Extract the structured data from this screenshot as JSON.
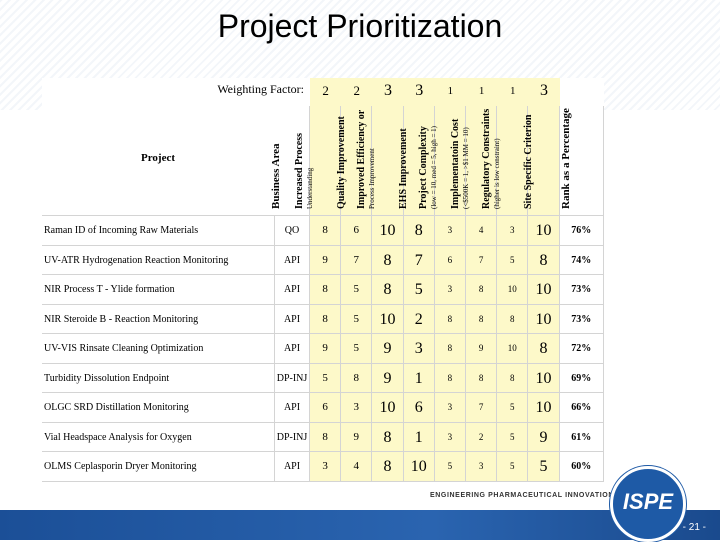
{
  "title": "Project Prioritization",
  "table": {
    "weighting_label": "Weighting Factor:",
    "weights": [
      "2",
      "2",
      "3",
      "3",
      "1",
      "1",
      "1",
      "3"
    ],
    "project_header": "Project",
    "business_area_header": "Business Area",
    "criteria": [
      {
        "label": "Increased Process",
        "label2": "Understanding"
      },
      {
        "label": "Quality Improvement",
        "label2": ""
      },
      {
        "label": "Improved Efficiency or",
        "label2": "Process Improvement"
      },
      {
        "label": "EHS Improvement",
        "label2": ""
      },
      {
        "label": "Project Complexity",
        "label2": "(low = 10, med = 5, high = 1)"
      },
      {
        "label": "Implementatoin Cost",
        "label2": "(<$500K = 1, >$1 MM = 10)"
      },
      {
        "label": "Regulatory Constraints",
        "label2": "(higher is low constraint)"
      },
      {
        "label": "Site Specific Criterion",
        "label2": ""
      }
    ],
    "rank_header": "Rank as a Percentage",
    "rows": [
      {
        "project": "Raman   ID of Incoming Raw Materials",
        "area": "QO",
        "scores": [
          "8",
          "6",
          "10",
          "8",
          "3",
          "4",
          "3",
          "10"
        ],
        "rank": "76%"
      },
      {
        "project": "UV-ATR   Hydrogenation Reaction Monitoring",
        "area": "API",
        "scores": [
          "9",
          "7",
          "8",
          "7",
          "6",
          "7",
          "5",
          "8"
        ],
        "rank": "74%"
      },
      {
        "project": "NIR   Process T - Ylide formation",
        "area": "API",
        "scores": [
          "8",
          "5",
          "8",
          "5",
          "3",
          "8",
          "10",
          "10"
        ],
        "rank": "73%"
      },
      {
        "project": "NIR   Steroide B - Reaction Monitoring",
        "area": "API",
        "scores": [
          "8",
          "5",
          "10",
          "2",
          "8",
          "8",
          "8",
          "10"
        ],
        "rank": "73%"
      },
      {
        "project": "UV-VIS   Rinsate Cleaning Optimization",
        "area": "API",
        "scores": [
          "9",
          "5",
          "9",
          "3",
          "8",
          "9",
          "10",
          "8"
        ],
        "rank": "72%"
      },
      {
        "project": "Turbidity   Dissolution Endpoint",
        "area": "DP-INJ",
        "scores": [
          "5",
          "8",
          "9",
          "1",
          "8",
          "8",
          "8",
          "10"
        ],
        "rank": "69%"
      },
      {
        "project": "OLGC   SRD Distillation Monitoring",
        "area": "API",
        "scores": [
          "6",
          "3",
          "10",
          "6",
          "3",
          "7",
          "5",
          "10"
        ],
        "rank": "66%"
      },
      {
        "project": "Vial Headspace Analysis for Oxygen",
        "area": "DP-INJ",
        "scores": [
          "8",
          "9",
          "8",
          "1",
          "3",
          "2",
          "5",
          "9"
        ],
        "rank": "61%"
      },
      {
        "project": "OLMS   Ceplasporin Dryer Monitoring",
        "area": "API",
        "scores": [
          "3",
          "4",
          "8",
          "10",
          "5",
          "3",
          "5",
          "5"
        ],
        "rank": "60%"
      }
    ]
  },
  "footer": {
    "tagline": "ENGINEERING PHARMACEUTICAL INNOVATION",
    "logo_text": "ISPE",
    "page_number": "- 21 -"
  }
}
